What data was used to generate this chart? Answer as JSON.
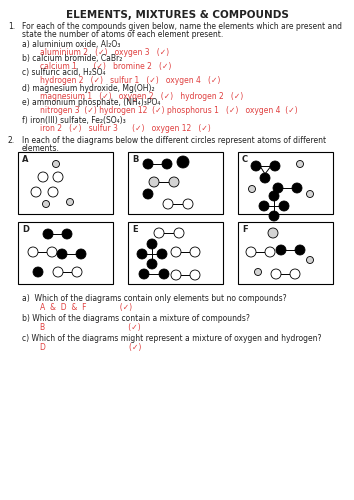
{
  "title": "ELEMENTS, MIXTURES & COMPOUNDS",
  "bg": "#ffffff",
  "black": "#222222",
  "red": "#e04040",
  "font": "DejaVu Sans",
  "title_fs": 7.5,
  "body_fs": 5.5,
  "red_fs": 5.5,
  "q1_num": "1.",
  "q1_intro": "For each of the compounds given below, name the elements which are present and",
  "q1_intro2": "state the number of atoms of each element present.",
  "q1_items": [
    {
      "q": "a) aluminium oxide, Al₂O₃",
      "a": "aluminium 2   (✓)   oxygen 3   (✓)"
    },
    {
      "q": "b) calcium bromide, CaBr₂",
      "a": "calcium 1       (✓)   bromine 2   (✓)"
    },
    {
      "q": "c) sulfuric acid, H₂SO₄",
      "a": "hydrogen 2   (✓)   sulfur 1   (✓)   oxygen 4   (✓)"
    },
    {
      "q": "d) magnesium hydroxide, Mg(OH)₂",
      "a": "magnesium 1   (✓)   oxygen 2   (✓)   hydrogen 2   (✓)"
    },
    {
      "q": "e) ammonium phosphate, (NH₄)₃PO₄",
      "a": "nitrogen 3  (✓) hydrogen 12  (✓) phosphorus 1   (✓)   oxygen 4  (✓)"
    },
    {
      "q": "f) iron(III) sulfate, Fe₂(SO₄)₃",
      "a": "iron 2   (✓)   sulfur 3      (✓)   oxygen 12   (✓)"
    }
  ],
  "q2_num": "2.",
  "q2_intro": "In each of the diagrams below the different circles represent atoms of different",
  "q2_intro2": "elements.",
  "q2a_q": "a)  Which of the diagrams contain only elements but no compounds?",
  "q2a_a": "A  &  D  &  F              (✓)",
  "q2b_q": "b) Which of the diagrams contain a mixture of compounds?",
  "q2b_a": "B                                   (✓)",
  "q2c_q": "c) Which of the diagrams might represent a mixture of oxygen and hydrogen?",
  "q2c_a": "D                                   (✓)"
}
